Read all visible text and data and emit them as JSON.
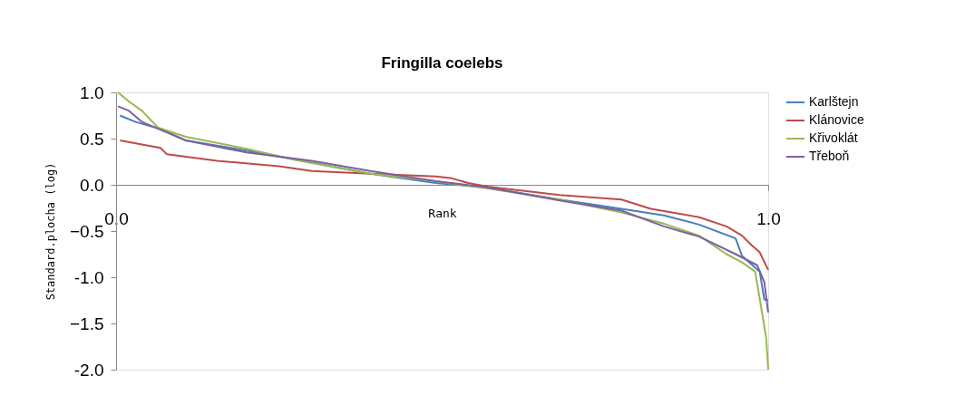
{
  "chart_data": {
    "type": "line",
    "title": "Fringilla coelebs",
    "xlabel": "Rank",
    "ylabel": "Standard.plocha (log)",
    "xlim": [
      0,
      1
    ],
    "xticks": [
      {
        "value": 0,
        "label": "0.0"
      },
      {
        "value": 1,
        "label": "1.0"
      }
    ],
    "ylim": [
      -2,
      1
    ],
    "yticks": [
      {
        "value": -2,
        "label": "-2.0"
      },
      -1.5,
      {
        "value": -1,
        "label": "-1.0"
      },
      -0.5,
      {
        "value": 0,
        "label": "0.0"
      },
      0.5,
      {
        "value": 1,
        "label": "1.0"
      }
    ],
    "grid": false,
    "legend": "right",
    "marker": "none",
    "line_style": "solid",
    "series": [
      {
        "name": "Karlštejn",
        "color": "#4a7ebb",
        "x": [
          0.006,
          0.03,
          0.07,
          0.107,
          0.2,
          0.3,
          0.39,
          0.49,
          0.57,
          0.68,
          0.775,
          0.84,
          0.894,
          0.95,
          0.96,
          0.987,
          0.994,
          1.0
        ],
        "values": [
          0.75,
          0.68,
          0.6,
          0.48,
          0.37,
          0.24,
          0.12,
          0.02,
          -0.03,
          -0.16,
          -0.26,
          -0.33,
          -0.43,
          -0.58,
          -0.77,
          -0.94,
          -1.24,
          -1.25
        ]
      },
      {
        "name": "Klánovice",
        "color": "#be4b48",
        "x": [
          0.006,
          0.068,
          0.078,
          0.155,
          0.25,
          0.3,
          0.39,
          0.49,
          0.515,
          0.54,
          0.57,
          0.68,
          0.775,
          0.82,
          0.894,
          0.936,
          0.96,
          0.974,
          0.987,
          1.0
        ],
        "values": [
          0.48,
          0.4,
          0.33,
          0.26,
          0.2,
          0.15,
          0.12,
          0.09,
          0.07,
          0.02,
          -0.02,
          -0.11,
          -0.16,
          -0.26,
          -0.35,
          -0.45,
          -0.55,
          -0.65,
          -0.73,
          -0.92
        ]
      },
      {
        "name": "Křivoklát",
        "color": "#98b954",
        "x": [
          0.003,
          0.02,
          0.04,
          0.064,
          0.107,
          0.2,
          0.275,
          0.39,
          0.49,
          0.57,
          0.68,
          0.775,
          0.84,
          0.894,
          0.936,
          0.96,
          0.98,
          0.99,
          0.997,
          1.0
        ],
        "values": [
          1.0,
          0.9,
          0.8,
          0.62,
          0.52,
          0.39,
          0.27,
          0.12,
          0.04,
          -0.04,
          -0.16,
          -0.3,
          -0.42,
          -0.55,
          -0.75,
          -0.84,
          -0.94,
          -1.36,
          -1.66,
          -2.0
        ]
      },
      {
        "name": "Třeboň",
        "color": "#7d60a0",
        "x": [
          0.003,
          0.02,
          0.04,
          0.08,
          0.107,
          0.2,
          0.3,
          0.39,
          0.49,
          0.57,
          0.68,
          0.775,
          0.84,
          0.894,
          0.95,
          0.983,
          0.994,
          1.0
        ],
        "values": [
          0.85,
          0.8,
          0.68,
          0.56,
          0.48,
          0.35,
          0.26,
          0.15,
          0.04,
          -0.03,
          -0.17,
          -0.28,
          -0.45,
          -0.56,
          -0.75,
          -0.87,
          -1.05,
          -1.38
        ]
      }
    ]
  }
}
